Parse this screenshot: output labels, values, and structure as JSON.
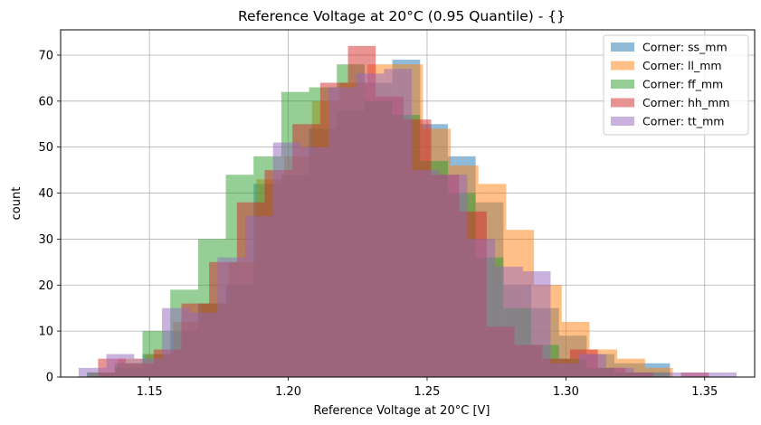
{
  "chart_data": {
    "type": "bar",
    "title": "Reference Voltage at 20°C (0.95 Quantile) - {}",
    "xlabel": "Reference Voltage at 20°C [V]",
    "ylabel": "count",
    "xlim": [
      1.118,
      1.368
    ],
    "ylim": [
      0,
      75.5
    ],
    "xticks": [
      1.15,
      1.2,
      1.25,
      1.3,
      1.35
    ],
    "xtick_labels": [
      "1.15",
      "1.20",
      "1.25",
      "1.30",
      "1.35"
    ],
    "yticks": [
      0,
      10,
      20,
      30,
      40,
      50,
      60,
      70
    ],
    "grid": true,
    "legend_position": "top-right",
    "series": [
      {
        "name": "Corner: ss_mm",
        "color": "#1f77b4",
        "edges": [
          1.1275,
          1.1375,
          1.1475,
          1.1575,
          1.1675,
          1.1775,
          1.1875,
          1.1975,
          1.2075,
          1.2175,
          1.2275,
          1.2375,
          1.2475,
          1.2575,
          1.2675,
          1.2775,
          1.2875,
          1.2975,
          1.3075,
          1.3175,
          1.3275,
          1.3375
        ],
        "counts": [
          1,
          2,
          5,
          10,
          16,
          20,
          42,
          44,
          54,
          58,
          64,
          69,
          55,
          48,
          38,
          20,
          15,
          9,
          5,
          3,
          3
        ]
      },
      {
        "name": "Corner: ll_mm",
        "color": "#ff7f0e",
        "edges": [
          1.1285,
          1.1385,
          1.1485,
          1.1585,
          1.1685,
          1.1785,
          1.1885,
          1.1985,
          1.2085,
          1.2185,
          1.2285,
          1.2385,
          1.2485,
          1.2585,
          1.2685,
          1.2785,
          1.2885,
          1.2985,
          1.3085,
          1.3185,
          1.3285,
          1.3385
        ],
        "counts": [
          1,
          4,
          5,
          12,
          16,
          25,
          43,
          48,
          60,
          64,
          68,
          68,
          54,
          46,
          42,
          32,
          20,
          12,
          6,
          4,
          2
        ]
      },
      {
        "name": "Corner: ff_mm",
        "color": "#2ca02c",
        "edges": [
          1.1275,
          1.1375,
          1.1475,
          1.1575,
          1.1675,
          1.1775,
          1.1875,
          1.1975,
          1.2075,
          1.2175,
          1.2275,
          1.2375,
          1.2475,
          1.2575,
          1.2675,
          1.2775,
          1.2875,
          1.2975,
          1.3075,
          1.3175,
          1.3275,
          1.3375
        ],
        "counts": [
          1,
          3,
          10,
          19,
          30,
          44,
          48,
          62,
          63,
          68,
          60,
          57,
          47,
          40,
          26,
          15,
          7,
          4,
          2,
          1,
          1
        ]
      },
      {
        "name": "Corner: hh_mm",
        "color": "#d62728",
        "edges": [
          1.1315,
          1.1415,
          1.1515,
          1.1615,
          1.1715,
          1.1815,
          1.1915,
          1.2015,
          1.2115,
          1.2215,
          1.2315,
          1.2415,
          1.2515,
          1.2615,
          1.2715,
          1.2815,
          1.2915,
          1.3015,
          1.3115,
          1.3215,
          1.3315,
          1.3415,
          1.3515
        ],
        "counts": [
          4,
          3,
          6,
          16,
          25,
          38,
          45,
          55,
          64,
          72,
          61,
          56,
          44,
          36,
          11,
          7,
          4,
          6,
          2,
          1,
          0,
          1
        ]
      },
      {
        "name": "Corner: tt_mm",
        "color": "#9467bd",
        "edges": [
          1.1245,
          1.1345,
          1.1445,
          1.1545,
          1.1645,
          1.1745,
          1.1845,
          1.1945,
          1.2045,
          1.2145,
          1.2245,
          1.2345,
          1.2445,
          1.2545,
          1.2645,
          1.2745,
          1.2845,
          1.2945,
          1.3045,
          1.3145,
          1.3245,
          1.3345,
          1.3445,
          1.3545,
          1.3615
        ],
        "counts": [
          2,
          5,
          4,
          15,
          14,
          26,
          35,
          51,
          50,
          63,
          66,
          67,
          45,
          44,
          30,
          24,
          23,
          3,
          5,
          2,
          1,
          1,
          1,
          1
        ]
      }
    ]
  }
}
